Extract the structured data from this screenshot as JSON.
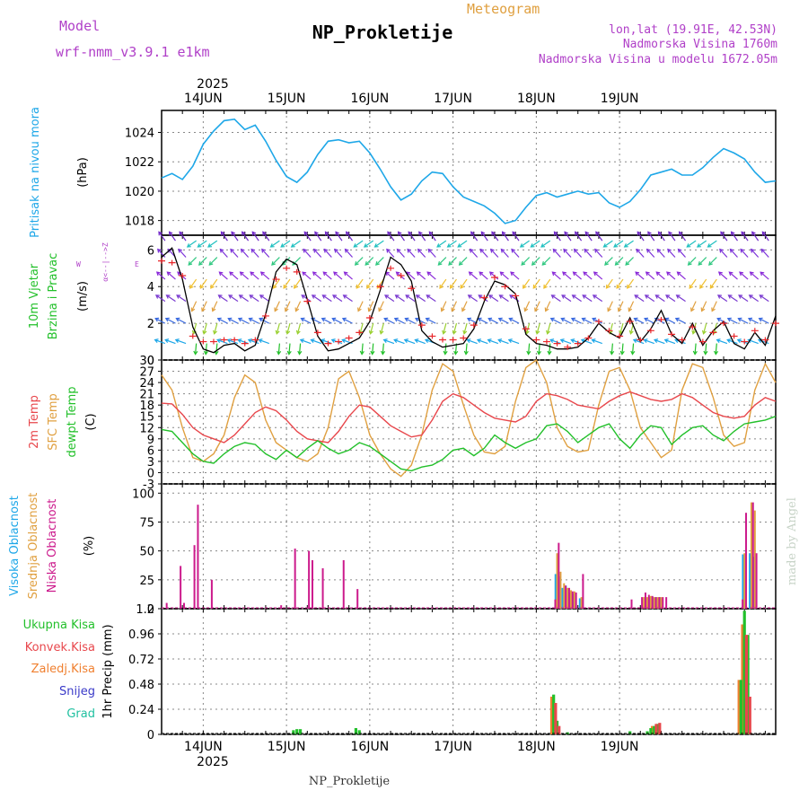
{
  "header": {
    "model_label": "Model",
    "model_name": "wrf-nmm_v3.9.1  e1km",
    "program": "Meteogram",
    "station": "NP_Prokletije",
    "coords": "lon,lat (19.91E, 42.53N)",
    "elevation": "Nadmorska Visina 1760m",
    "model_elevation": "Nadmorska Visina u modelu 1672.05m",
    "year_top": "2025",
    "year_bottom": "2025",
    "footer_station": "NP_Prokletije",
    "credit": "made by Angel"
  },
  "colors": {
    "pressure": "#1ea7e8",
    "temp2m": "#e8474c",
    "sfc": "#e0a040",
    "dewpt": "#22c02a",
    "wind_speed": "#000000",
    "gust": "#e8262a",
    "high_cloud": "#1ea7e8",
    "mid_cloud": "#e0a040",
    "low_cloud": "#cc1a8c",
    "total_precip": "#22c02a",
    "conv_precip": "#e8474c",
    "frozen_precip": "#f08030",
    "snow": "#3a3ac8",
    "hail": "#20c0a0",
    "title_purple": "#b040c8",
    "grid": "#888888"
  },
  "chart_data": [
    {
      "type": "line",
      "name": "pressure",
      "title": "Pritisak na nivou mora",
      "ylabel": "(hPa)",
      "ylim": [
        1017,
        1025.5
      ],
      "yticks": [
        "1018",
        "1020",
        "1022",
        "1024"
      ],
      "x_hours": [
        0,
        3,
        6,
        9,
        12,
        15,
        18,
        21,
        24,
        27,
        30,
        33,
        36,
        39,
        42,
        45,
        48,
        51,
        54,
        57,
        60,
        63,
        66,
        69,
        72,
        75,
        78,
        81,
        84,
        87,
        90,
        93,
        96,
        99,
        102,
        105,
        108,
        111,
        114,
        117,
        120,
        123,
        126,
        129,
        132,
        135,
        138,
        141,
        144,
        147,
        150,
        153,
        156,
        159,
        162,
        165,
        168,
        171,
        174,
        177
      ],
      "values": [
        1020.9,
        1021.2,
        1020.8,
        1021.7,
        1023.2,
        1024.1,
        1024.8,
        1024.9,
        1024.2,
        1024.5,
        1023.4,
        1022.1,
        1021.0,
        1020.6,
        1021.3,
        1022.5,
        1023.4,
        1023.5,
        1023.3,
        1023.4,
        1022.6,
        1021.5,
        1020.3,
        1019.4,
        1019.8,
        1020.7,
        1021.3,
        1021.2,
        1020.3,
        1019.6,
        1019.3,
        1019.0,
        1018.5,
        1017.8,
        1018.0,
        1018.9,
        1019.7,
        1019.9,
        1019.6,
        1019.8,
        1020.0,
        1019.8,
        1019.9,
        1019.2,
        1018.9,
        1019.3,
        1020.1,
        1021.1,
        1021.3,
        1021.5,
        1021.1,
        1021.1,
        1021.6,
        1022.3,
        1022.9,
        1022.6,
        1022.2,
        1021.3,
        1020.6,
        1020.7
      ]
    },
    {
      "type": "line",
      "name": "wind",
      "title": "10m Vjetar",
      "title2": "Brzina i Pravac",
      "ylabel": "(m/s)",
      "ylim": [
        0,
        6.8
      ],
      "yticks": [
        "0",
        "2",
        "4",
        "6"
      ],
      "compass": "Z\n^\n|\nW <--+--> E\n|\nv\nJ",
      "x_hours": [
        0,
        3,
        6,
        9,
        12,
        15,
        18,
        21,
        24,
        27,
        30,
        33,
        36,
        39,
        42,
        45,
        48,
        51,
        54,
        57,
        60,
        63,
        66,
        69,
        72,
        75,
        78,
        81,
        84,
        87,
        90,
        93,
        96,
        99,
        102,
        105,
        108,
        111,
        114,
        117,
        120,
        123,
        126,
        129,
        132,
        135,
        138,
        141,
        144,
        147,
        150,
        153,
        156,
        159,
        162,
        165,
        168,
        171,
        174,
        177
      ],
      "speed": [
        5.6,
        6.1,
        4.4,
        1.8,
        0.6,
        0.4,
        0.8,
        0.9,
        0.5,
        0.8,
        2.5,
        4.8,
        5.5,
        5.2,
        3.3,
        1.3,
        0.5,
        0.6,
        0.9,
        1.2,
        2.1,
        3.8,
        5.6,
        5.2,
        4.3,
        1.6,
        1.0,
        0.7,
        0.8,
        0.9,
        1.7,
        3.2,
        4.3,
        4.1,
        3.6,
        1.4,
        0.9,
        0.8,
        0.6,
        0.6,
        0.7,
        1.2,
        2.0,
        1.5,
        1.2,
        2.3,
        1.0,
        1.7,
        2.7,
        1.4,
        0.9,
        2.0,
        0.8,
        1.6,
        2.1,
        0.9,
        0.6,
        1.5,
        0.8,
        2.4
      ],
      "gust": [
        5.4,
        5.3,
        4.6,
        1.3,
        1.0,
        1.0,
        1.1,
        1.1,
        0.9,
        1.1,
        2.4,
        4.4,
        5.0,
        4.8,
        3.2,
        1.5,
        0.9,
        1.0,
        1.2,
        1.5,
        2.3,
        4.0,
        5.0,
        4.6,
        3.9,
        1.9,
        1.3,
        1.1,
        1.1,
        1.2,
        1.9,
        3.4,
        4.5,
        4.0,
        3.5,
        1.7,
        1.1,
        1.0,
        0.9,
        0.7,
        0.9,
        1.2,
        2.1,
        1.6,
        1.3,
        2.1,
        1.1,
        1.6,
        2.2,
        1.4,
        1.1,
        1.8,
        1.0,
        1.5,
        2.0,
        1.3,
        1.0,
        1.6,
        1.1,
        2.0
      ]
    },
    {
      "type": "line",
      "name": "temperature",
      "title": "2m Temp",
      "title2": "SFC Temp",
      "title3": "dewpt Temp",
      "ylabel": "(C)",
      "ylim": [
        -3,
        30
      ],
      "yticks": [
        "-3",
        "0",
        "3",
        "6",
        "9",
        "12",
        "15",
        "18",
        "21",
        "24",
        "27",
        "30"
      ],
      "x_hours": [
        0,
        3,
        6,
        9,
        12,
        15,
        18,
        21,
        24,
        27,
        30,
        33,
        36,
        39,
        42,
        45,
        48,
        51,
        54,
        57,
        60,
        63,
        66,
        69,
        72,
        75,
        78,
        81,
        84,
        87,
        90,
        93,
        96,
        99,
        102,
        105,
        108,
        111,
        114,
        117,
        120,
        123,
        126,
        129,
        132,
        135,
        138,
        141,
        144,
        147,
        150,
        153,
        156,
        159,
        162,
        165,
        168,
        171,
        174,
        177
      ],
      "t2m": [
        18.5,
        18.3,
        15.5,
        12.0,
        10.0,
        9.0,
        8.0,
        10.0,
        13.0,
        16.0,
        17.5,
        16.5,
        14.0,
        11.0,
        9.0,
        8.5,
        8.0,
        11.0,
        15.0,
        18.0,
        17.5,
        15.0,
        12.5,
        11.0,
        9.5,
        10.0,
        14.0,
        19.0,
        21.0,
        20.0,
        18.0,
        16.0,
        14.5,
        14.0,
        13.5,
        15.0,
        19.0,
        21.0,
        20.5,
        19.5,
        18.0,
        17.5,
        17.0,
        19.0,
        20.5,
        21.5,
        20.5,
        19.5,
        19.0,
        19.5,
        21.0,
        20.0,
        18.0,
        16.0,
        15.0,
        14.5,
        15.0,
        18.0,
        20.0,
        19.0
      ],
      "sfc": [
        26.0,
        22.0,
        12.0,
        4.0,
        3.0,
        5.0,
        10.0,
        20.0,
        26.0,
        24.0,
        14.0,
        8.0,
        6.0,
        4.0,
        3.0,
        5.0,
        12.0,
        25.0,
        27.0,
        20.0,
        10.0,
        5.0,
        1.0,
        -1.0,
        2.0,
        10.0,
        22.0,
        29.0,
        27.0,
        18.0,
        10.0,
        5.5,
        5.0,
        7.0,
        19.0,
        28.0,
        30.0,
        24.0,
        12.0,
        7.0,
        5.5,
        6.0,
        18.0,
        27.0,
        28.0,
        22.0,
        12.0,
        8.0,
        4.0,
        6.0,
        22.0,
        29.0,
        28.0,
        20.0,
        10.0,
        7.0,
        8.0,
        22.0,
        29.0,
        24.0
      ],
      "dewpt": [
        11.5,
        11.0,
        8.0,
        5.0,
        3.0,
        2.5,
        5.0,
        7.0,
        8.0,
        7.5,
        5.0,
        3.5,
        6.0,
        4.0,
        6.5,
        8.5,
        6.5,
        5.0,
        6.0,
        8.0,
        7.0,
        5.0,
        3.0,
        1.0,
        0.5,
        1.5,
        2.0,
        3.5,
        6.0,
        6.5,
        4.5,
        6.5,
        10.0,
        8.0,
        6.5,
        8.0,
        9.0,
        12.5,
        13.0,
        11.0,
        8.0,
        10.0,
        12.0,
        13.0,
        9.0,
        6.5,
        10.0,
        12.5,
        12.0,
        7.5,
        10.0,
        12.0,
        12.5,
        10.0,
        8.5,
        11.0,
        13.0,
        13.5,
        14.0,
        15.0
      ]
    },
    {
      "type": "bar",
      "name": "clouds",
      "title": "Visoka Oblacnost",
      "title2": "Srednja Oblacnost",
      "title3": "Niska Oblacnost",
      "ylabel": "(%)",
      "ylim": [
        0,
        108
      ],
      "yticks": [
        "0",
        "25",
        "50",
        "75",
        "100"
      ],
      "low": [
        [
          1,
          5
        ],
        [
          5,
          37
        ],
        [
          6,
          5
        ],
        [
          9,
          55
        ],
        [
          10,
          90
        ],
        [
          14,
          25
        ],
        [
          34,
          3
        ],
        [
          38,
          52
        ],
        [
          42,
          50
        ],
        [
          43,
          42
        ],
        [
          46,
          35
        ],
        [
          52,
          42
        ],
        [
          56,
          17
        ],
        [
          113,
          8
        ],
        [
          114,
          57
        ],
        [
          116,
          20
        ],
        [
          117,
          18
        ],
        [
          118,
          15
        ],
        [
          119,
          14
        ],
        [
          121,
          30
        ],
        [
          135,
          8
        ],
        [
          138,
          10
        ],
        [
          139,
          14
        ],
        [
          140,
          12
        ],
        [
          141,
          11
        ],
        [
          142,
          10
        ],
        [
          143,
          10
        ],
        [
          144,
          10
        ],
        [
          145,
          10
        ],
        [
          167,
          8
        ],
        [
          168,
          83
        ],
        [
          170,
          92
        ],
        [
          171,
          48
        ]
      ],
      "mid": [
        [
          114,
          48
        ],
        [
          115,
          32
        ],
        [
          116,
          22
        ],
        [
          117,
          18
        ],
        [
          118,
          16
        ],
        [
          119,
          15
        ],
        [
          121,
          10
        ],
        [
          139,
          10
        ],
        [
          140,
          10
        ],
        [
          141,
          11
        ],
        [
          142,
          10
        ],
        [
          143,
          10
        ],
        [
          144,
          10
        ],
        [
          168,
          48
        ],
        [
          170,
          92
        ],
        [
          171,
          85
        ]
      ],
      "high": [
        [
          114,
          30
        ],
        [
          115,
          28
        ],
        [
          116,
          18
        ],
        [
          117,
          20
        ],
        [
          118,
          14
        ],
        [
          119,
          13
        ],
        [
          121,
          9
        ],
        [
          140,
          9
        ],
        [
          141,
          10
        ],
        [
          142,
          10
        ],
        [
          143,
          10
        ],
        [
          144,
          10
        ],
        [
          168,
          47
        ],
        [
          170,
          48
        ],
        [
          171,
          45
        ]
      ]
    },
    {
      "type": "bar",
      "name": "precip",
      "title": "Ukupna Kisa",
      "title2": "Konvek.Kisa",
      "title3": "Zaledj.Kisa",
      "title4": "Snijeg",
      "title5": "Grad",
      "ylabel": "1hr Precip (mm)",
      "ylim": [
        0,
        1.2
      ],
      "yticks": [
        "0",
        "0.24",
        "0.48",
        "0.72",
        "0.96",
        "1.2"
      ],
      "total": [
        [
          38,
          0.04
        ],
        [
          39,
          0.05
        ],
        [
          40,
          0.05
        ],
        [
          56,
          0.06
        ],
        [
          57,
          0.04
        ],
        [
          113,
          0.38
        ],
        [
          114,
          0.13
        ],
        [
          117,
          0.02
        ],
        [
          135,
          0.03
        ],
        [
          140,
          0.03
        ],
        [
          141,
          0.06
        ],
        [
          142,
          0.08
        ],
        [
          143,
          0.1
        ],
        [
          167,
          0.52
        ],
        [
          168,
          1.18
        ],
        [
          169,
          0.95
        ]
      ],
      "conv": [
        [
          113,
          0.3
        ],
        [
          114,
          0.08
        ],
        [
          142,
          0.1
        ],
        [
          143,
          0.11
        ],
        [
          168,
          0.95
        ],
        [
          169,
          0.36
        ]
      ],
      "frozen": [
        [
          113,
          0.36
        ],
        [
          114,
          0.12
        ],
        [
          142,
          0.08
        ],
        [
          167,
          0.52
        ],
        [
          168,
          1.05
        ],
        [
          169,
          0.35
        ]
      ],
      "snow": [],
      "hail": []
    }
  ],
  "x_axis": {
    "day_labels": [
      "14JUN",
      "15JUN",
      "16JUN",
      "17JUN",
      "18JUN",
      "19JUN"
    ],
    "day_hours": [
      12,
      36,
      60,
      84,
      108,
      132
    ],
    "range_hours": [
      0,
      177
    ]
  }
}
